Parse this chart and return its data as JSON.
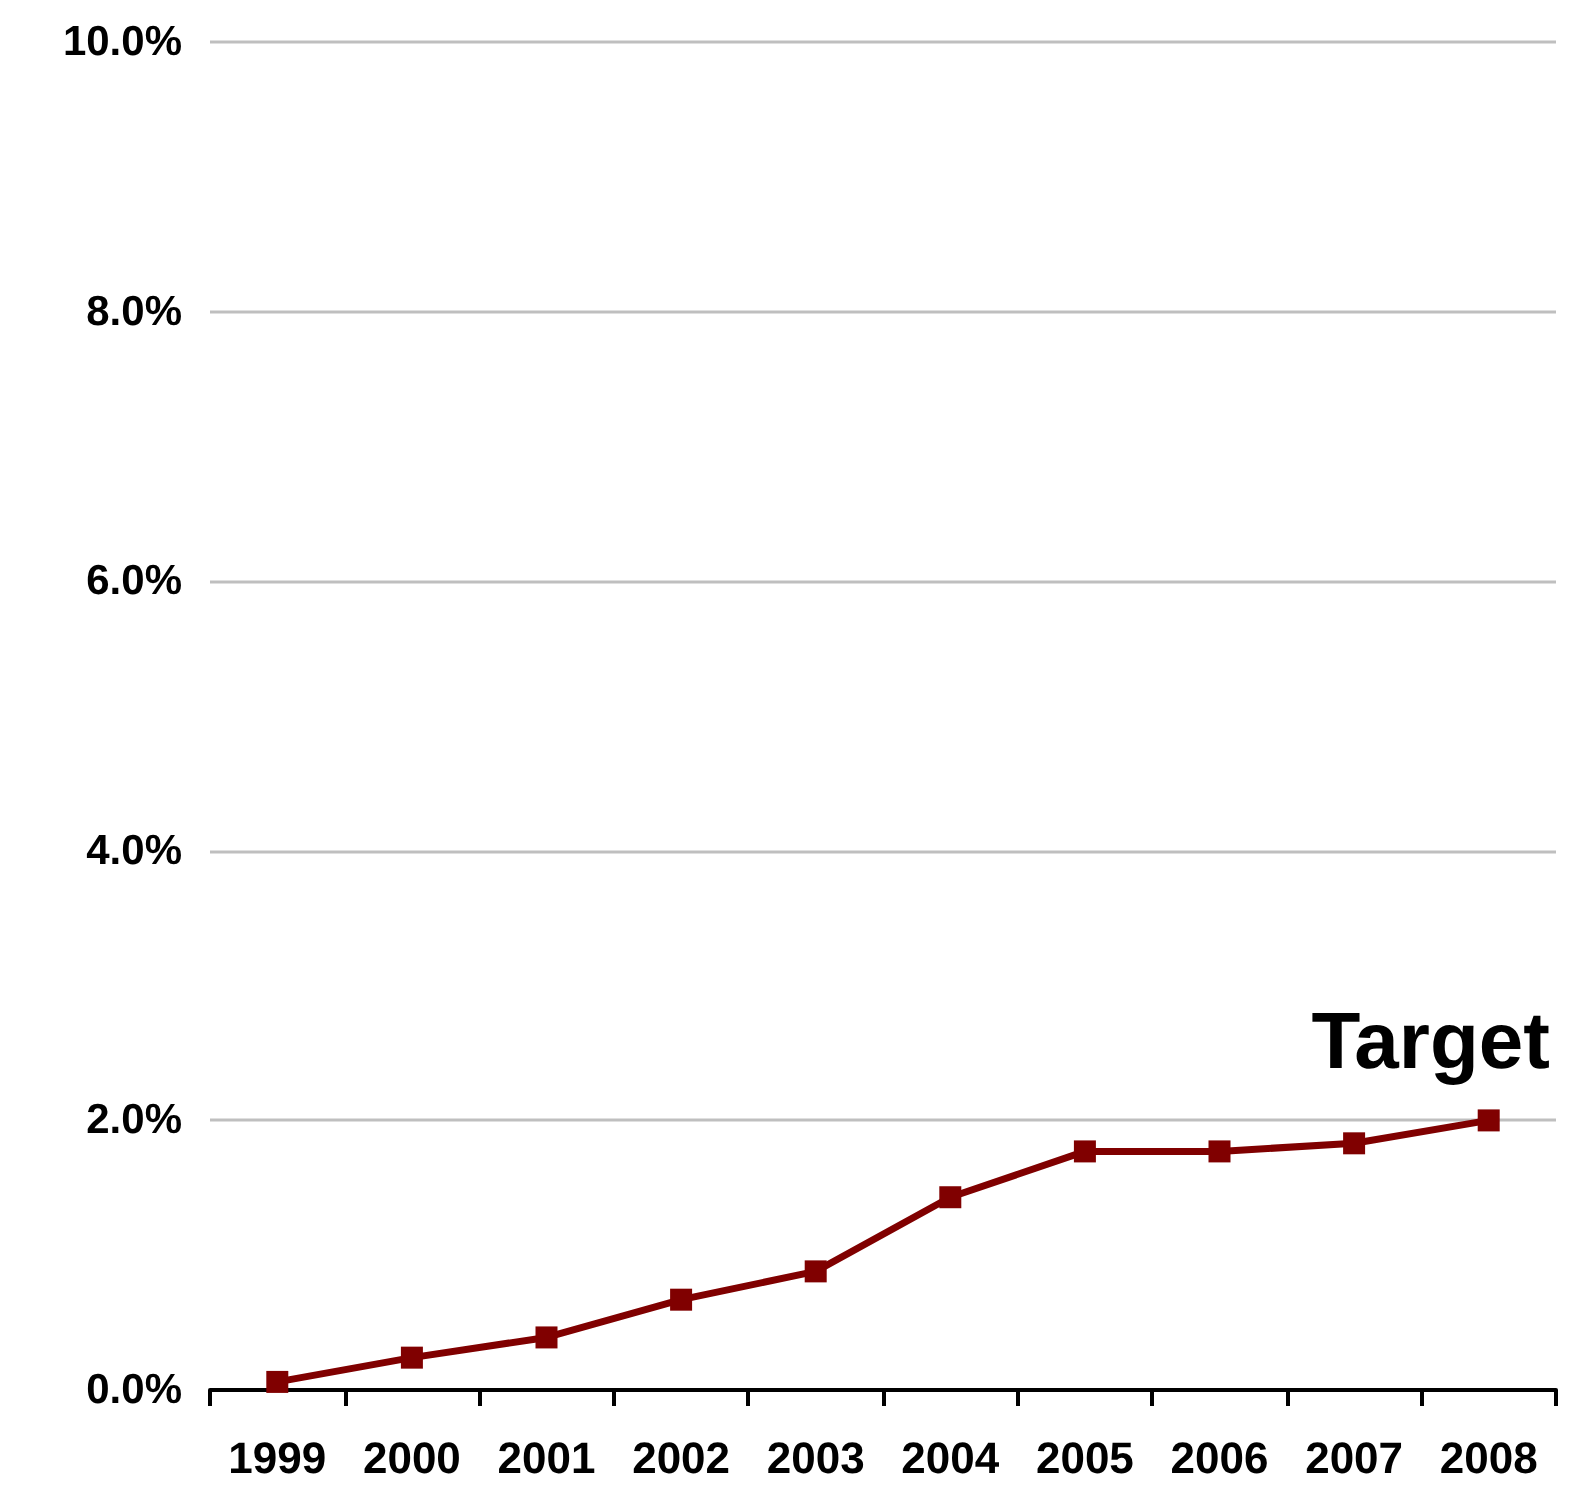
{
  "chart_data": {
    "type": "line",
    "categories": [
      "1999",
      "2000",
      "2001",
      "2002",
      "2003",
      "2004",
      "2005",
      "2006",
      "2007",
      "2008"
    ],
    "series": [
      {
        "color": "#800000",
        "values": [
          0.06,
          0.24,
          0.39,
          0.67,
          0.88,
          1.43,
          1.77,
          1.77,
          1.83,
          2.0
        ]
      }
    ],
    "ylim": [
      0,
      10
    ],
    "yticks": [
      {
        "value": 0,
        "label": "0.0%"
      },
      {
        "value": 2,
        "label": "2.0%"
      },
      {
        "value": 4,
        "label": "4.0%"
      },
      {
        "value": 6,
        "label": "6.0%"
      },
      {
        "value": 8,
        "label": "8.0%"
      },
      {
        "value": 10,
        "label": "10.0%"
      }
    ],
    "grid": "y",
    "marker": "square",
    "line_style": "solid",
    "annotations": [
      {
        "text": "Target",
        "x": "2008",
        "y": 2.0
      }
    ]
  }
}
